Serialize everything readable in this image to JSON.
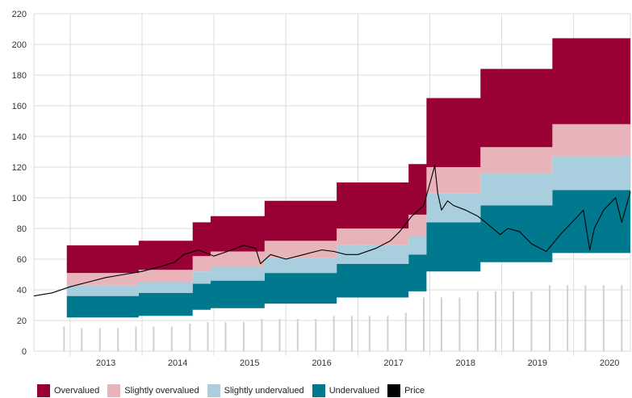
{
  "chart_data": {
    "type": "area",
    "x_domain": [
      "2012-07-01",
      "2020-10-15"
    ],
    "ylim": [
      0,
      220
    ],
    "yticks": [
      0,
      20,
      40,
      60,
      80,
      100,
      120,
      140,
      160,
      180,
      200,
      220
    ],
    "xticks": [
      "2013",
      "2014",
      "2015",
      "2016",
      "2017",
      "2018",
      "2019",
      "2020"
    ],
    "grid": true,
    "legend_position": "bottom-left",
    "bands": {
      "dates": [
        "2012-12-15",
        "2013-03-15",
        "2013-06-15",
        "2013-09-15",
        "2013-12-15",
        "2014-03-15",
        "2014-06-15",
        "2014-09-15",
        "2014-12-15",
        "2015-03-15",
        "2015-06-15",
        "2015-09-15",
        "2015-12-15",
        "2016-03-15",
        "2016-06-15",
        "2016-09-15",
        "2016-12-15",
        "2017-03-15",
        "2017-06-15",
        "2017-09-15",
        "2017-12-15",
        "2018-03-15",
        "2018-06-15",
        "2018-09-15",
        "2018-12-15",
        "2019-03-15",
        "2019-06-15",
        "2019-09-15",
        "2019-12-15",
        "2020-03-15",
        "2020-06-15",
        "2020-09-15"
      ],
      "bottom": [
        22,
        22,
        22,
        22,
        23,
        23,
        23,
        27,
        28,
        28,
        28,
        31,
        31,
        31,
        31,
        35,
        35,
        35,
        35,
        39,
        52,
        52,
        52,
        58,
        58,
        58,
        58,
        64,
        64,
        64,
        64,
        64
      ],
      "undervalued_top": [
        36,
        36,
        36,
        36,
        38,
        38,
        38,
        44,
        46,
        46,
        46,
        51,
        51,
        51,
        51,
        57,
        57,
        57,
        57,
        63,
        84,
        84,
        84,
        95,
        95,
        95,
        95,
        105,
        105,
        105,
        105,
        105
      ],
      "slightly_undervalued_top": [
        43,
        43,
        43,
        43,
        45,
        45,
        45,
        52,
        55,
        55,
        55,
        61,
        61,
        61,
        61,
        69,
        69,
        69,
        69,
        75,
        103,
        103,
        103,
        116,
        116,
        116,
        116,
        127,
        127,
        127,
        127,
        127
      ],
      "slightly_overvalued_top": [
        51,
        51,
        51,
        51,
        53,
        53,
        53,
        62,
        65,
        65,
        65,
        72,
        72,
        72,
        72,
        80,
        80,
        80,
        80,
        89,
        120,
        120,
        120,
        133,
        133,
        133,
        133,
        148,
        148,
        148,
        148,
        148
      ],
      "overvalued_top": [
        69,
        69,
        69,
        69,
        72,
        72,
        72,
        84,
        88,
        88,
        88,
        98,
        98,
        98,
        98,
        110,
        110,
        110,
        110,
        122,
        165,
        165,
        165,
        184,
        184,
        184,
        184,
        204,
        204,
        204,
        204,
        204
      ]
    },
    "price": {
      "dates": [
        "2012-07-01",
        "2012-10-01",
        "2013-01-01",
        "2013-04-01",
        "2013-07-01",
        "2013-10-01",
        "2014-01-01",
        "2014-04-01",
        "2014-06-15",
        "2014-08-01",
        "2014-10-15",
        "2015-01-01",
        "2015-04-01",
        "2015-06-01",
        "2015-08-01",
        "2015-08-25",
        "2015-10-15",
        "2016-01-01",
        "2016-04-01",
        "2016-07-01",
        "2016-09-01",
        "2016-11-01",
        "2017-01-01",
        "2017-04-01",
        "2017-06-15",
        "2017-08-01",
        "2017-10-01",
        "2017-12-01",
        "2018-01-26",
        "2018-02-10",
        "2018-03-01",
        "2018-04-01",
        "2018-05-01",
        "2018-07-01",
        "2018-09-01",
        "2018-10-01",
        "2018-12-24",
        "2019-02-01",
        "2019-04-01",
        "2019-06-01",
        "2019-08-15",
        "2019-11-01",
        "2020-01-15",
        "2020-02-19",
        "2020-03-23",
        "2020-04-15",
        "2020-06-01",
        "2020-08-01",
        "2020-09-01",
        "2020-10-15"
      ],
      "values": [
        36,
        38,
        42,
        45,
        48,
        50,
        52,
        55,
        58,
        63,
        66,
        62,
        66,
        69,
        67,
        57,
        63,
        60,
        63,
        66,
        65,
        63,
        63,
        67,
        72,
        78,
        88,
        95,
        121,
        103,
        92,
        98,
        95,
        92,
        88,
        85,
        76,
        80,
        78,
        70,
        65,
        77,
        87,
        92,
        66,
        80,
        92,
        100,
        84,
        104
      ]
    },
    "volume_bars": {
      "dates": [
        "2012-12-01",
        "2013-03-01",
        "2013-06-01",
        "2013-09-01",
        "2013-12-01",
        "2014-03-01",
        "2014-06-01",
        "2014-09-01",
        "2014-12-01",
        "2015-03-01",
        "2015-06-01",
        "2015-09-01",
        "2015-12-01",
        "2016-03-01",
        "2016-06-01",
        "2016-09-01",
        "2016-12-01",
        "2017-03-01",
        "2017-06-01",
        "2017-09-01",
        "2017-12-01",
        "2018-03-01",
        "2018-06-01",
        "2018-09-01",
        "2018-12-01",
        "2019-03-01",
        "2019-06-01",
        "2019-09-01",
        "2019-12-01",
        "2020-03-01",
        "2020-06-01",
        "2020-09-01"
      ],
      "values": [
        16,
        15,
        15,
        15,
        16,
        16,
        16,
        18,
        19,
        19,
        19,
        21,
        21,
        21,
        21,
        23,
        23,
        23,
        23,
        25,
        35,
        35,
        35,
        39,
        39,
        39,
        39,
        43,
        43,
        43,
        43,
        43
      ]
    },
    "legend": [
      {
        "label": "Overvalued",
        "color": "#990033"
      },
      {
        "label": "Slightly overvalued",
        "color": "#e8b4ba"
      },
      {
        "label": "Slightly undervalued",
        "color": "#a9cfdf"
      },
      {
        "label": "Undervalued",
        "color": "#00798f"
      },
      {
        "label": "Price",
        "color": "#000000"
      }
    ]
  }
}
